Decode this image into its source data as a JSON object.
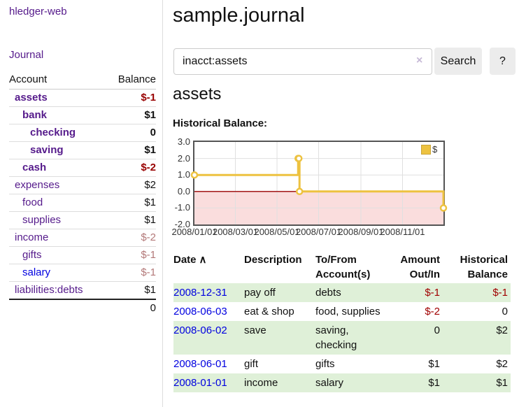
{
  "colors": {
    "link_purple": "#551a8b",
    "link_blue": "#0000e0",
    "negative_strong": "#990000",
    "negative_muted": "#b37878",
    "row_stripe_green": "#dff0d8",
    "chart_line": "#edc240",
    "chart_negative_fill": "#fadddd",
    "chart_zero_line": "#990000",
    "chart_grid": "#e0e0e0",
    "chart_border": "#545454"
  },
  "sidebar": {
    "app_title": "hledger-web",
    "journal_link": "Journal",
    "accounts": {
      "header_account": "Account",
      "header_balance": "Balance",
      "rows": [
        {
          "name": "assets",
          "balance": "$-1",
          "depth": 1,
          "bold": true,
          "balance_class": "neg-strong",
          "link": "purple"
        },
        {
          "name": "bank",
          "balance": "$1",
          "depth": 2,
          "bold": true,
          "balance_class": "",
          "link": "purple"
        },
        {
          "name": "checking",
          "balance": "0",
          "depth": 3,
          "bold": true,
          "balance_class": "",
          "link": "purple"
        },
        {
          "name": "saving",
          "balance": "$1",
          "depth": 3,
          "bold": true,
          "balance_class": "",
          "link": "purple"
        },
        {
          "name": "cash",
          "balance": "$-2",
          "depth": 2,
          "bold": true,
          "balance_class": "neg-strong",
          "link": "purple"
        },
        {
          "name": "expenses",
          "balance": "$2",
          "depth": 1,
          "bold": false,
          "balance_class": "",
          "link": "purple"
        },
        {
          "name": "food",
          "balance": "$1",
          "depth": 2,
          "bold": false,
          "balance_class": "",
          "link": "purple"
        },
        {
          "name": "supplies",
          "balance": "$1",
          "depth": 2,
          "bold": false,
          "balance_class": "",
          "link": "purple"
        },
        {
          "name": "income",
          "balance": "$-2",
          "depth": 1,
          "bold": false,
          "balance_class": "neg-muted",
          "link": "purple"
        },
        {
          "name": "gifts",
          "balance": "$-1",
          "depth": 2,
          "bold": false,
          "balance_class": "neg-muted",
          "link": "purple"
        },
        {
          "name": "salary",
          "balance": "$-1",
          "depth": 2,
          "bold": false,
          "balance_class": "neg-muted",
          "link": "blue"
        },
        {
          "name": "liabilities:debts",
          "balance": "$1",
          "depth": 1,
          "bold": false,
          "balance_class": "",
          "link": "purple"
        }
      ],
      "total": "0"
    }
  },
  "main": {
    "title": "sample.journal",
    "search": {
      "value": "inacct:assets",
      "clear_icon": "×",
      "search_button": "Search",
      "help_button": "?"
    },
    "heading": "assets",
    "chart_title": "Historical Balance:"
  },
  "chart_data": {
    "type": "line",
    "title": "Historical Balance",
    "series": [
      {
        "name": "$",
        "color": "#edc240",
        "step": true,
        "points": [
          [
            "2008-01-01",
            1
          ],
          [
            "2008-06-01",
            2
          ],
          [
            "2008-06-02",
            2
          ],
          [
            "2008-06-03",
            0
          ],
          [
            "2008-12-31",
            -1
          ]
        ]
      }
    ],
    "x_range": [
      "2008-01-01",
      "2008-12-31"
    ],
    "ylim": [
      -2,
      3
    ],
    "y_ticks": [
      3,
      2,
      1,
      0,
      -1,
      -2
    ],
    "y_tick_labels": [
      "3.0",
      "2.0",
      "1.0",
      "0.0",
      "-1.0",
      "-2.0"
    ],
    "x_ticks": [
      "2008-01-01",
      "2008-03-01",
      "2008-05-01",
      "2008-07-01",
      "2008-09-01",
      "2008-11-01"
    ],
    "x_tick_labels": [
      "2008/01/01",
      "2008/03/01",
      "2008/05/01",
      "2008/07/01",
      "2008/09/01",
      "2008/11/01"
    ],
    "legend": {
      "label": "$",
      "position": "top-right"
    },
    "grid": true,
    "negative_region": true
  },
  "transactions": {
    "headers": {
      "date": "Date",
      "sort_indicator": "∧",
      "description": "Description",
      "accounts_line1": "To/From",
      "accounts_line2": "Account(s)",
      "amount_line1": "Amount",
      "amount_line2": "Out/In",
      "balance_line1": "Historical",
      "balance_line2": "Balance"
    },
    "rows": [
      {
        "date": "2008-12-31",
        "description": "pay off",
        "accounts": "debts",
        "amount": "$-1",
        "amount_class": "neg",
        "balance": "$-1",
        "balance_class": "neg"
      },
      {
        "date": "2008-06-03",
        "description": "eat & shop",
        "accounts": "food, supplies",
        "amount": "$-2",
        "amount_class": "neg",
        "balance": "0",
        "balance_class": ""
      },
      {
        "date": "2008-06-02",
        "description": "save",
        "accounts": "saving, checking",
        "amount": "0",
        "amount_class": "",
        "balance": "$2",
        "balance_class": ""
      },
      {
        "date": "2008-06-01",
        "description": "gift",
        "accounts": "gifts",
        "amount": "$1",
        "amount_class": "",
        "balance": "$2",
        "balance_class": ""
      },
      {
        "date": "2008-01-01",
        "description": "income",
        "accounts": "salary",
        "amount": "$1",
        "amount_class": "",
        "balance": "$1",
        "balance_class": ""
      }
    ]
  }
}
